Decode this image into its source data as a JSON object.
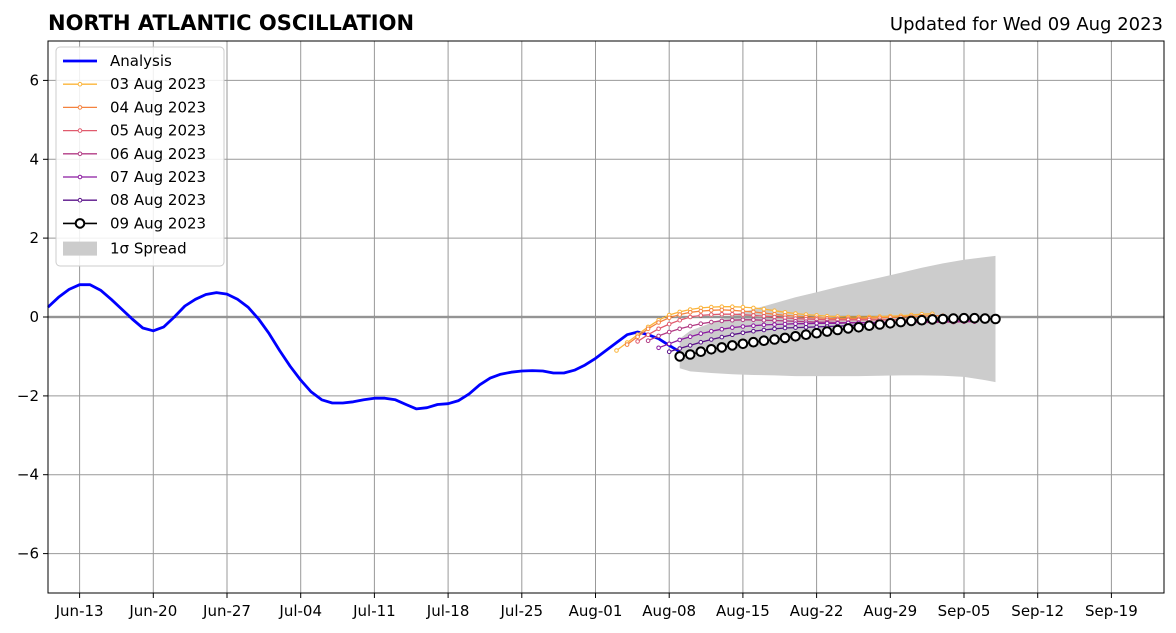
{
  "chart_data": {
    "type": "line",
    "title": "NORTH ATLANTIC OSCILLATION",
    "subtitle": "Updated for Wed 09 Aug 2023",
    "xlabel": "",
    "ylabel": "",
    "x_range": [
      "2023-06-10",
      "2023-09-24"
    ],
    "ylim": [
      -7,
      7
    ],
    "y_ticks": [
      -6,
      -4,
      -2,
      0,
      2,
      4,
      6
    ],
    "y_tick_labels": [
      "−6",
      "−4",
      "−2",
      "0",
      "2",
      "4",
      "6"
    ],
    "x_ticks": [
      "2023-06-13",
      "2023-06-20",
      "2023-06-27",
      "2023-07-04",
      "2023-07-11",
      "2023-07-18",
      "2023-07-25",
      "2023-08-01",
      "2023-08-08",
      "2023-08-15",
      "2023-08-22",
      "2023-08-29",
      "2023-09-05",
      "2023-09-12",
      "2023-09-19"
    ],
    "x_tick_labels": [
      "Jun-13",
      "Jun-20",
      "Jun-27",
      "Jul-04",
      "Jul-11",
      "Jul-18",
      "Jul-25",
      "Aug-01",
      "Aug-08",
      "Aug-15",
      "Aug-22",
      "Aug-29",
      "Sep-05",
      "Sep-12",
      "Sep-19"
    ],
    "grid": true,
    "zero_line": true,
    "legend_position": "top-left",
    "colors": {
      "analysis": "#0000ff",
      "forecast": [
        "#fbb43a",
        "#f4823f",
        "#e05a6d",
        "#b23b84",
        "#8b1aa0",
        "#5a128a",
        "#000000"
      ],
      "spread": "#cccccc",
      "grid": "#999999"
    },
    "series": [
      {
        "name": "Analysis",
        "style": "analysis",
        "x": [
          "2023-06-10",
          "2023-06-11",
          "2023-06-12",
          "2023-06-13",
          "2023-06-14",
          "2023-06-15",
          "2023-06-16",
          "2023-06-17",
          "2023-06-18",
          "2023-06-19",
          "2023-06-20",
          "2023-06-21",
          "2023-06-22",
          "2023-06-23",
          "2023-06-24",
          "2023-06-25",
          "2023-06-26",
          "2023-06-27",
          "2023-06-28",
          "2023-06-29",
          "2023-06-30",
          "2023-07-01",
          "2023-07-02",
          "2023-07-03",
          "2023-07-04",
          "2023-07-05",
          "2023-07-06",
          "2023-07-07",
          "2023-07-08",
          "2023-07-09",
          "2023-07-10",
          "2023-07-11",
          "2023-07-12",
          "2023-07-13",
          "2023-07-14",
          "2023-07-15",
          "2023-07-16",
          "2023-07-17",
          "2023-07-18",
          "2023-07-19",
          "2023-07-20",
          "2023-07-21",
          "2023-07-22",
          "2023-07-23",
          "2023-07-24",
          "2023-07-25",
          "2023-07-26",
          "2023-07-27",
          "2023-07-28",
          "2023-07-29",
          "2023-07-30",
          "2023-07-31",
          "2023-08-01",
          "2023-08-02",
          "2023-08-03",
          "2023-08-04",
          "2023-08-05",
          "2023-08-06",
          "2023-08-07",
          "2023-08-08",
          "2023-08-09"
        ],
        "values": [
          0.25,
          0.5,
          0.7,
          0.82,
          0.82,
          0.68,
          0.45,
          0.2,
          -0.05,
          -0.28,
          -0.35,
          -0.25,
          0.0,
          0.28,
          0.45,
          0.57,
          0.62,
          0.58,
          0.45,
          0.25,
          -0.05,
          -0.42,
          -0.85,
          -1.25,
          -1.6,
          -1.9,
          -2.1,
          -2.18,
          -2.18,
          -2.15,
          -2.1,
          -2.06,
          -2.06,
          -2.1,
          -2.22,
          -2.33,
          -2.3,
          -2.22,
          -2.2,
          -2.12,
          -1.95,
          -1.72,
          -1.55,
          -1.45,
          -1.4,
          -1.37,
          -1.36,
          -1.37,
          -1.42,
          -1.42,
          -1.35,
          -1.22,
          -1.05,
          -0.85,
          -0.65,
          -0.45,
          -0.38,
          -0.45,
          -0.55,
          -0.72,
          -0.88
        ]
      },
      {
        "name": "03 Aug 2023",
        "style": "forecast",
        "x": [
          "2023-08-03",
          "2023-08-04",
          "2023-08-05",
          "2023-08-06",
          "2023-08-07",
          "2023-08-08",
          "2023-08-09",
          "2023-08-10",
          "2023-08-11",
          "2023-08-12",
          "2023-08-13",
          "2023-08-14",
          "2023-08-15",
          "2023-08-16",
          "2023-08-17",
          "2023-08-18",
          "2023-08-19",
          "2023-08-20",
          "2023-08-21",
          "2023-08-22",
          "2023-08-23",
          "2023-08-24",
          "2023-08-25",
          "2023-08-26",
          "2023-08-27",
          "2023-08-28",
          "2023-08-29",
          "2023-08-30",
          "2023-08-31",
          "2023-09-01",
          "2023-09-02"
        ],
        "values": [
          -0.85,
          -0.65,
          -0.45,
          -0.25,
          -0.08,
          0.05,
          0.13,
          0.19,
          0.23,
          0.25,
          0.26,
          0.26,
          0.25,
          0.23,
          0.2,
          0.16,
          0.12,
          0.09,
          0.06,
          0.04,
          0.02,
          0.01,
          0.0,
          0.0,
          0.0,
          0.01,
          0.02,
          0.03,
          0.05,
          0.07,
          0.08
        ]
      },
      {
        "name": "04 Aug 2023",
        "style": "forecast",
        "x": [
          "2023-08-04",
          "2023-08-05",
          "2023-08-06",
          "2023-08-07",
          "2023-08-08",
          "2023-08-09",
          "2023-08-10",
          "2023-08-11",
          "2023-08-12",
          "2023-08-13",
          "2023-08-14",
          "2023-08-15",
          "2023-08-16",
          "2023-08-17",
          "2023-08-18",
          "2023-08-19",
          "2023-08-20",
          "2023-08-21",
          "2023-08-22",
          "2023-08-23",
          "2023-08-24",
          "2023-08-25",
          "2023-08-26",
          "2023-08-27",
          "2023-08-28",
          "2023-08-29",
          "2023-08-30",
          "2023-08-31",
          "2023-09-01",
          "2023-09-02",
          "2023-09-03"
        ],
        "values": [
          -0.7,
          -0.5,
          -0.3,
          -0.14,
          -0.02,
          0.06,
          0.12,
          0.15,
          0.17,
          0.18,
          0.17,
          0.15,
          0.13,
          0.1,
          0.07,
          0.04,
          0.02,
          0.0,
          -0.02,
          -0.03,
          -0.04,
          -0.04,
          -0.04,
          -0.03,
          -0.02,
          -0.01,
          0.0,
          0.01,
          0.02,
          0.03,
          0.03
        ]
      },
      {
        "name": "05 Aug 2023",
        "style": "forecast",
        "x": [
          "2023-08-05",
          "2023-08-06",
          "2023-08-07",
          "2023-08-08",
          "2023-08-09",
          "2023-08-10",
          "2023-08-11",
          "2023-08-12",
          "2023-08-13",
          "2023-08-14",
          "2023-08-15",
          "2023-08-16",
          "2023-08-17",
          "2023-08-18",
          "2023-08-19",
          "2023-08-20",
          "2023-08-21",
          "2023-08-22",
          "2023-08-23",
          "2023-08-24",
          "2023-08-25",
          "2023-08-26",
          "2023-08-27",
          "2023-08-28",
          "2023-08-29",
          "2023-08-30",
          "2023-08-31",
          "2023-09-01",
          "2023-09-02",
          "2023-09-03",
          "2023-09-04"
        ],
        "values": [
          -0.62,
          -0.45,
          -0.3,
          -0.18,
          -0.08,
          0.0,
          0.04,
          0.06,
          0.07,
          0.07,
          0.06,
          0.04,
          0.02,
          0.0,
          -0.02,
          -0.04,
          -0.05,
          -0.06,
          -0.07,
          -0.07,
          -0.07,
          -0.07,
          -0.07,
          -0.07,
          -0.07,
          -0.07,
          -0.08,
          -0.09,
          -0.1,
          -0.11,
          -0.12
        ]
      },
      {
        "name": "06 Aug 2023",
        "style": "forecast",
        "x": [
          "2023-08-06",
          "2023-08-07",
          "2023-08-08",
          "2023-08-09",
          "2023-08-10",
          "2023-08-11",
          "2023-08-12",
          "2023-08-13",
          "2023-08-14",
          "2023-08-15",
          "2023-08-16",
          "2023-08-17",
          "2023-08-18",
          "2023-08-19",
          "2023-08-20",
          "2023-08-21",
          "2023-08-22",
          "2023-08-23",
          "2023-08-24",
          "2023-08-25",
          "2023-08-26",
          "2023-08-27",
          "2023-08-28",
          "2023-08-29",
          "2023-08-30",
          "2023-08-31",
          "2023-09-01",
          "2023-09-02",
          "2023-09-03",
          "2023-09-04",
          "2023-09-05",
          "2023-09-06"
        ],
        "values": [
          -0.6,
          -0.48,
          -0.38,
          -0.3,
          -0.23,
          -0.17,
          -0.13,
          -0.1,
          -0.08,
          -0.07,
          -0.07,
          -0.08,
          -0.09,
          -0.1,
          -0.11,
          -0.12,
          -0.13,
          -0.13,
          -0.14,
          -0.14,
          -0.14,
          -0.14,
          -0.14,
          -0.14,
          -0.14,
          -0.14,
          -0.14,
          -0.14,
          -0.13,
          -0.13,
          -0.12,
          -0.12
        ]
      },
      {
        "name": "07 Aug 2023",
        "style": "forecast",
        "x": [
          "2023-08-07",
          "2023-08-08",
          "2023-08-09",
          "2023-08-10",
          "2023-08-11",
          "2023-08-12",
          "2023-08-13",
          "2023-08-14",
          "2023-08-15",
          "2023-08-16",
          "2023-08-17",
          "2023-08-18",
          "2023-08-19",
          "2023-08-20",
          "2023-08-21",
          "2023-08-22",
          "2023-08-23",
          "2023-08-24",
          "2023-08-25",
          "2023-08-26",
          "2023-08-27",
          "2023-08-28",
          "2023-08-29",
          "2023-08-30",
          "2023-08-31",
          "2023-09-01",
          "2023-09-02",
          "2023-09-03",
          "2023-09-04",
          "2023-09-05",
          "2023-09-06"
        ],
        "values": [
          -0.78,
          -0.68,
          -0.58,
          -0.5,
          -0.42,
          -0.36,
          -0.31,
          -0.27,
          -0.24,
          -0.22,
          -0.2,
          -0.19,
          -0.18,
          -0.17,
          -0.17,
          -0.16,
          -0.16,
          -0.16,
          -0.15,
          -0.15,
          -0.14,
          -0.14,
          -0.13,
          -0.13,
          -0.12,
          -0.12,
          -0.11,
          -0.11,
          -0.1,
          -0.1,
          -0.1
        ]
      },
      {
        "name": "08 Aug 2023",
        "style": "forecast",
        "x": [
          "2023-08-08",
          "2023-08-09",
          "2023-08-10",
          "2023-08-11",
          "2023-08-12",
          "2023-08-13",
          "2023-08-14",
          "2023-08-15",
          "2023-08-16",
          "2023-08-17",
          "2023-08-18",
          "2023-08-19",
          "2023-08-20",
          "2023-08-21",
          "2023-08-22",
          "2023-08-23",
          "2023-08-24",
          "2023-08-25",
          "2023-08-26",
          "2023-08-27",
          "2023-08-28",
          "2023-08-29",
          "2023-08-30",
          "2023-08-31",
          "2023-09-01",
          "2023-09-02",
          "2023-09-03",
          "2023-09-04",
          "2023-09-05",
          "2023-09-06",
          "2023-09-07"
        ],
        "values": [
          -0.88,
          -0.8,
          -0.72,
          -0.64,
          -0.57,
          -0.51,
          -0.45,
          -0.4,
          -0.36,
          -0.33,
          -0.3,
          -0.28,
          -0.27,
          -0.26,
          -0.25,
          -0.24,
          -0.23,
          -0.22,
          -0.2,
          -0.18,
          -0.16,
          -0.14,
          -0.12,
          -0.1,
          -0.09,
          -0.08,
          -0.07,
          -0.06,
          -0.06,
          -0.05,
          -0.05
        ]
      },
      {
        "name": "09 Aug 2023",
        "style": "latest",
        "x": [
          "2023-08-09",
          "2023-08-10",
          "2023-08-11",
          "2023-08-12",
          "2023-08-13",
          "2023-08-14",
          "2023-08-15",
          "2023-08-16",
          "2023-08-17",
          "2023-08-18",
          "2023-08-19",
          "2023-08-20",
          "2023-08-21",
          "2023-08-22",
          "2023-08-23",
          "2023-08-24",
          "2023-08-25",
          "2023-08-26",
          "2023-08-27",
          "2023-08-28",
          "2023-08-29",
          "2023-08-30",
          "2023-08-31",
          "2023-09-01",
          "2023-09-02",
          "2023-09-03",
          "2023-09-04",
          "2023-09-05",
          "2023-09-06",
          "2023-09-07",
          "2023-09-08"
        ],
        "values": [
          -1.0,
          -0.95,
          -0.88,
          -0.82,
          -0.77,
          -0.72,
          -0.68,
          -0.64,
          -0.6,
          -0.57,
          -0.53,
          -0.49,
          -0.45,
          -0.41,
          -0.37,
          -0.33,
          -0.29,
          -0.26,
          -0.22,
          -0.19,
          -0.16,
          -0.13,
          -0.1,
          -0.08,
          -0.06,
          -0.05,
          -0.04,
          -0.03,
          -0.03,
          -0.04,
          -0.05
        ]
      }
    ],
    "spread": {
      "name": "1σ Spread",
      "x": [
        "2023-08-09",
        "2023-08-10",
        "2023-08-12",
        "2023-08-14",
        "2023-08-16",
        "2023-08-18",
        "2023-08-20",
        "2023-08-22",
        "2023-08-24",
        "2023-08-26",
        "2023-08-28",
        "2023-08-30",
        "2023-09-01",
        "2023-09-03",
        "2023-09-05",
        "2023-09-07",
        "2023-09-08"
      ],
      "upper": [
        -0.55,
        -0.35,
        -0.15,
        0.05,
        0.2,
        0.35,
        0.5,
        0.63,
        0.76,
        0.88,
        1.0,
        1.12,
        1.25,
        1.36,
        1.45,
        1.52,
        1.55
      ],
      "lower": [
        -1.3,
        -1.38,
        -1.42,
        -1.45,
        -1.47,
        -1.48,
        -1.5,
        -1.5,
        -1.5,
        -1.5,
        -1.49,
        -1.48,
        -1.48,
        -1.49,
        -1.52,
        -1.6,
        -1.65
      ]
    },
    "legend": [
      "Analysis",
      "03 Aug 2023",
      "04 Aug 2023",
      "05 Aug 2023",
      "06 Aug 2023",
      "07 Aug 2023",
      "08 Aug 2023",
      "09 Aug 2023",
      "1σ Spread"
    ]
  }
}
